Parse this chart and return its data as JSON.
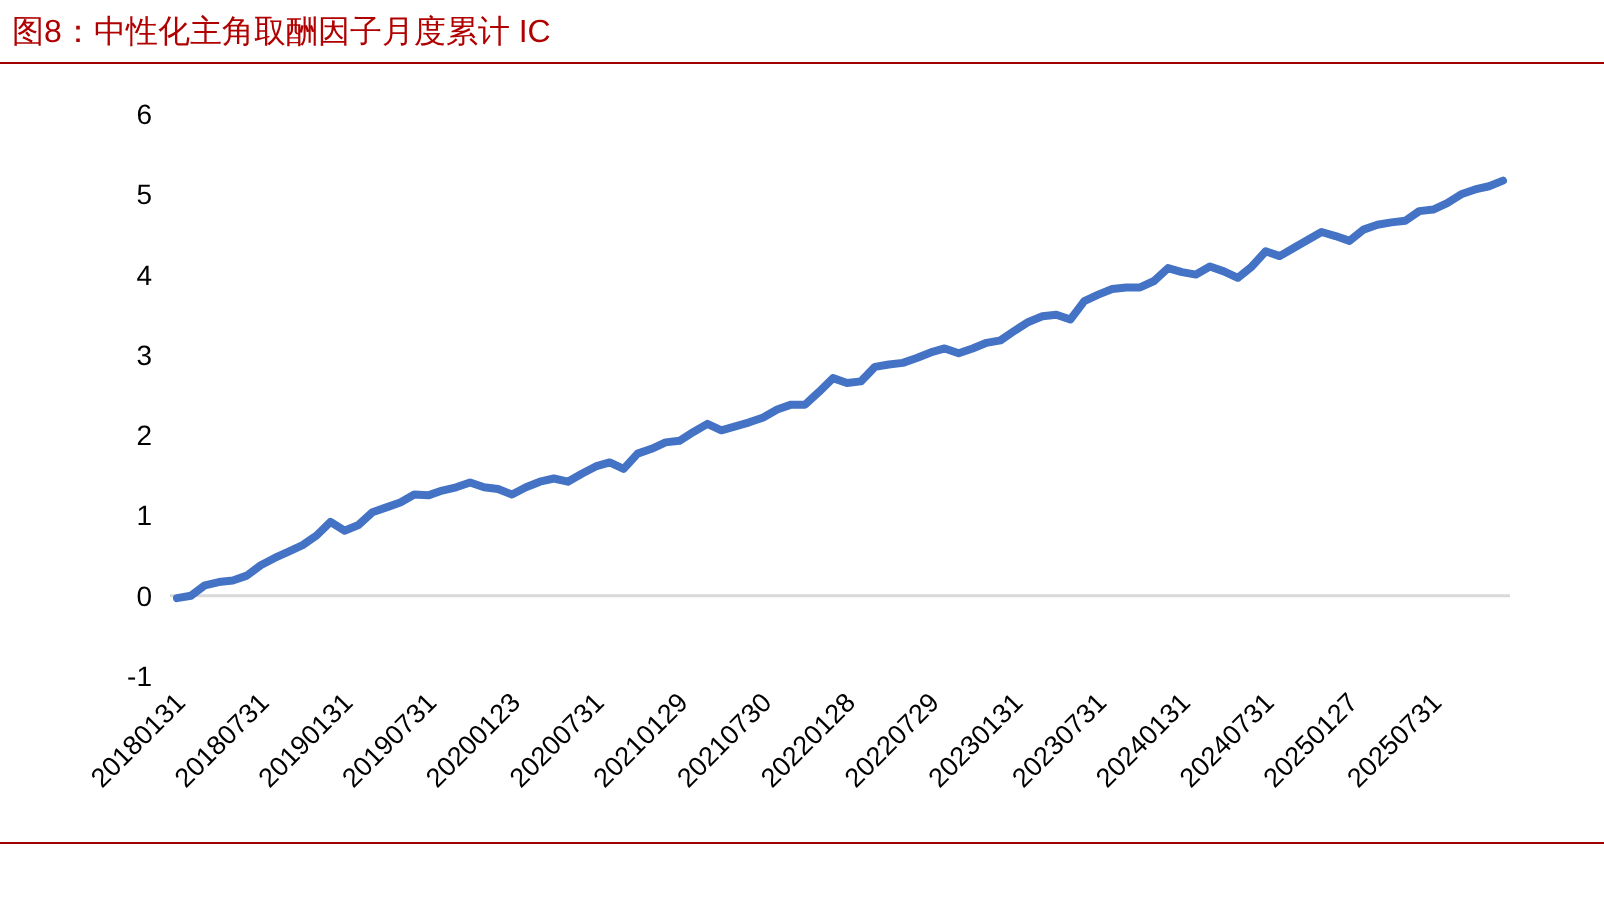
{
  "chart_data": {
    "type": "line",
    "title": "图8：中性化主角取酬因子月度累计 IC",
    "categories": [
      "20180131",
      null,
      null,
      null,
      null,
      null,
      "20180731",
      null,
      null,
      null,
      null,
      null,
      "20190131",
      null,
      null,
      null,
      null,
      null,
      "20190731",
      null,
      null,
      null,
      null,
      null,
      "20200123",
      null,
      null,
      null,
      null,
      null,
      "20200731",
      null,
      null,
      null,
      null,
      null,
      "20210129",
      null,
      null,
      null,
      null,
      null,
      "20210730",
      null,
      null,
      null,
      null,
      null,
      "20220128",
      null,
      null,
      null,
      null,
      null,
      "20220729",
      null,
      null,
      null,
      null,
      null,
      "20230131",
      null,
      null,
      null,
      null,
      null,
      "20230731",
      null,
      null,
      null,
      null,
      null,
      "20240131",
      null,
      null,
      null,
      null,
      null,
      "20240731",
      null,
      null,
      null,
      null,
      null,
      "20250127",
      null,
      null,
      null,
      null,
      null,
      "20250731",
      null,
      null,
      null,
      null,
      null
    ],
    "values": [
      -0.03,
      0.0,
      0.13,
      0.17,
      0.19,
      0.25,
      0.38,
      0.47,
      0.55,
      0.63,
      0.75,
      0.92,
      0.81,
      0.88,
      1.04,
      1.1,
      1.16,
      1.26,
      1.25,
      1.31,
      1.35,
      1.41,
      1.35,
      1.33,
      1.26,
      1.35,
      1.42,
      1.46,
      1.42,
      1.52,
      1.61,
      1.66,
      1.58,
      1.77,
      1.83,
      1.91,
      1.93,
      2.04,
      2.14,
      2.06,
      2.11,
      2.16,
      2.22,
      2.32,
      2.38,
      2.38,
      2.54,
      2.71,
      2.65,
      2.67,
      2.85,
      2.88,
      2.9,
      2.96,
      3.03,
      3.08,
      3.02,
      3.08,
      3.15,
      3.18,
      3.3,
      3.41,
      3.48,
      3.5,
      3.44,
      3.67,
      3.75,
      3.82,
      3.84,
      3.84,
      3.92,
      4.08,
      4.03,
      4.0,
      4.1,
      4.04,
      3.96,
      4.1,
      4.29,
      4.23,
      4.33,
      4.43,
      4.53,
      4.48,
      4.42,
      4.56,
      4.62,
      4.65,
      4.67,
      4.79,
      4.81,
      4.89,
      5.0,
      5.06,
      5.1,
      5.17
    ],
    "color": "#4472c4",
    "ylim": [
      -1,
      6
    ],
    "yticks": [
      -1,
      0,
      1,
      2,
      3,
      4,
      5,
      6
    ],
    "ref_lines": [
      {
        "axis": "y",
        "value": 0,
        "color": "#d9d9d9"
      }
    ]
  }
}
